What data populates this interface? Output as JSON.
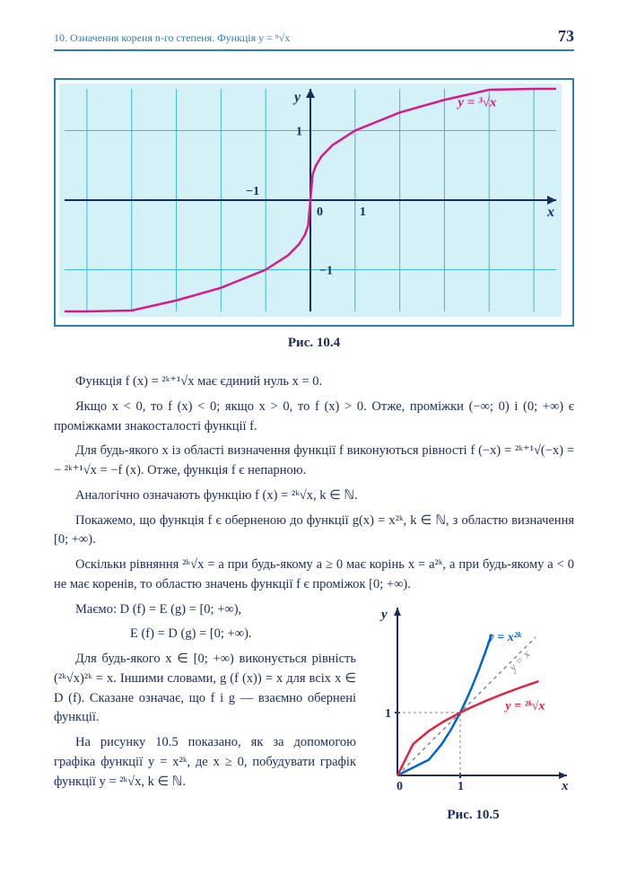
{
  "page_number": "73",
  "header_text": "10. Означення кореня n-го степеня. Функція y = ⁿ√x",
  "fig1": {
    "caption": "Рис. 10.4",
    "type": "line",
    "xlim": [
      -5.5,
      5.5
    ],
    "ylim": [
      -1.6,
      1.6
    ],
    "xtick": 1,
    "ytick": 1,
    "x_axis_label": "x",
    "y_axis_label": "y",
    "curve_label": "y = ³√x",
    "curve_label_color": "#d91a8c",
    "tick_labels": {
      "x": [
        "−1",
        "0",
        "1"
      ],
      "y": [
        "−1",
        "1"
      ]
    },
    "grid_color": "#3db8d4",
    "border_color": "#2a7fb8",
    "curve_color": "#d91a8c",
    "curve_width": 2.5,
    "background_color": "#d3f1f6",
    "curve_points": [
      [
        -5.5,
        -1.765
      ],
      [
        -5,
        -1.71
      ],
      [
        -4,
        -1.587
      ],
      [
        -3,
        -1.442
      ],
      [
        -2,
        -1.26
      ],
      [
        -1,
        -1
      ],
      [
        -0.5,
        -0.794
      ],
      [
        -0.25,
        -0.63
      ],
      [
        -0.125,
        -0.5
      ],
      [
        -0.05,
        -0.368
      ],
      [
        0,
        0
      ],
      [
        0.05,
        0.368
      ],
      [
        0.125,
        0.5
      ],
      [
        0.25,
        0.63
      ],
      [
        0.5,
        0.794
      ],
      [
        1,
        1
      ],
      [
        2,
        1.26
      ],
      [
        3,
        1.442
      ],
      [
        4,
        1.587
      ],
      [
        5,
        1.71
      ],
      [
        5.5,
        1.765
      ]
    ]
  },
  "paragraphs": {
    "p1": "Функція  f (x) = ²ᵏ⁺¹√x  має єдиний нуль x = 0.",
    "p2": "Якщо x < 0, то f (x) < 0; якщо x > 0, то f (x) > 0. Отже, проміжки (−∞; 0) і (0; +∞) є проміжками знакосталості функції f.",
    "p3": "Для будь-якого x із області визначення функції f виконуються рівності f (−x) = ²ᵏ⁺¹√(−x) = − ²ᵏ⁺¹√x = −f (x). Отже, функція f є непарною.",
    "p4": "Аналогічно означають функцію  f (x) = ²ᵏ√x,   k ∈ ℕ.",
    "p5": "Покажемо, що функція f є оберненою до функції g(x) = x²ᵏ,  k ∈ ℕ, з областю визначення [0; +∞).",
    "p6": "Оскільки рівняння  ²ᵏ√x = a  при будь-якому a ≥ 0 має корінь x = a²ᵏ, а при будь-якому a < 0 не має коренів, то областю значень функції f є проміжок [0; +∞).",
    "p7a": "Маємо: D (f) = E (g) = [0; +∞),",
    "p7b": "E (f) = D (g) = [0; +∞).",
    "p8": "Для будь-якого x ∈ [0; +∞) виконується рівність (²ᵏ√x)²ᵏ = x. Іншими словами,  g (f (x)) = x для всіх  x ∈ D (f). Сказане означає, що f і g — взаємно обернені функції.",
    "p9": "На рисунку 10.5 показано, як за допомогою графіка функції y = x²ᵏ, де x ≥ 0, побудувати  графік  функції   y = ²ᵏ√x, k ∈ ℕ."
  },
  "fig2": {
    "caption": "Рис. 10.5",
    "type": "line",
    "x_axis_label": "x",
    "y_axis_label": "y",
    "xlim": [
      0,
      2.3
    ],
    "ylim": [
      0,
      2.3
    ],
    "background_color": "#ffffff",
    "axis_color": "#1a2b5c",
    "curve1_label": "y = x²ᵏ",
    "curve1_color": "#0066cc",
    "curve1_points": [
      [
        0,
        0
      ],
      [
        0.5,
        0.25
      ],
      [
        0.7,
        0.49
      ],
      [
        0.85,
        0.723
      ],
      [
        1,
        1
      ],
      [
        1.1,
        1.21
      ],
      [
        1.2,
        1.44
      ],
      [
        1.3,
        1.69
      ],
      [
        1.4,
        1.96
      ],
      [
        1.5,
        2.25
      ]
    ],
    "curve2_label": "y = ²ᵏ√x",
    "curve2_color": "#e0223e",
    "curve2_points": [
      [
        0,
        0
      ],
      [
        0.25,
        0.5
      ],
      [
        0.49,
        0.7
      ],
      [
        0.723,
        0.85
      ],
      [
        1,
        1
      ],
      [
        1.21,
        1.1
      ],
      [
        1.44,
        1.2
      ],
      [
        1.69,
        1.3
      ],
      [
        1.96,
        1.4
      ],
      [
        2.25,
        1.5
      ]
    ],
    "diag_label": "y = x",
    "diag_color": "#888888",
    "tick_labels": [
      "0",
      "1"
    ]
  }
}
